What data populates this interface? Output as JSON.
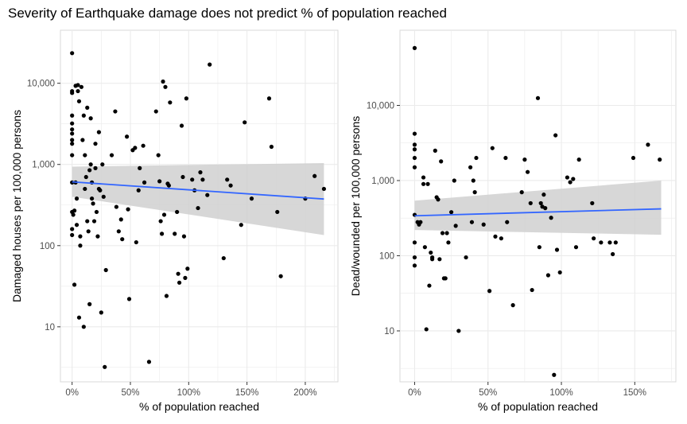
{
  "title": "Severity of Earthquake damage does not predict % of population reached",
  "colors": {
    "point": "#000000",
    "fit_line": "#3366FF",
    "confidence_band": "#d0d0d0",
    "grid": "#ebebeb",
    "panel_border": "#d9d9d9"
  },
  "chart_data": [
    {
      "type": "scatter",
      "name": "damaged-houses",
      "xlabel": "% of population reached",
      "ylabel": "Damaged houses per 100,000 persons",
      "y_scale": "log10",
      "xlim": [
        -0.1,
        2.28
      ],
      "ylim": [
        2.1,
        45000
      ],
      "x_ticks": [
        0,
        0.5,
        1,
        1.5,
        2
      ],
      "x_tick_labels": [
        "0%",
        "50%",
        "100%",
        "150%",
        "200%"
      ],
      "y_ticks": [
        10,
        100,
        1000,
        10000
      ],
      "y_tick_labels": [
        "10",
        "100",
        "1,000",
        "10,000"
      ],
      "smooth": {
        "method": "lm",
        "x": [
          0,
          2.16
        ],
        "y": [
          610,
          375
        ],
        "ci_low": [
          400,
          135
        ],
        "ci_high": [
          940,
          1040
        ]
      },
      "points": [
        [
          0.0,
          23500
        ],
        [
          0.0,
          8000
        ],
        [
          0.0,
          7600
        ],
        [
          0.0,
          4000
        ],
        [
          0.0,
          3200
        ],
        [
          0.0,
          2700
        ],
        [
          0.0,
          2400
        ],
        [
          0.0,
          2000
        ],
        [
          0.0,
          1800
        ],
        [
          0.0,
          1300
        ],
        [
          0.0,
          600
        ],
        [
          0.0,
          260
        ],
        [
          0.0,
          160
        ],
        [
          0.0,
          135
        ],
        [
          0.01,
          240
        ],
        [
          0.02,
          270
        ],
        [
          0.02,
          33
        ],
        [
          0.03,
          9300
        ],
        [
          0.03,
          600
        ],
        [
          0.04,
          380
        ],
        [
          0.04,
          180
        ],
        [
          0.05,
          9500
        ],
        [
          0.05,
          8000
        ],
        [
          0.06,
          6000
        ],
        [
          0.06,
          13
        ],
        [
          0.07,
          130
        ],
        [
          0.07,
          100
        ],
        [
          0.08,
          9000
        ],
        [
          0.09,
          2000
        ],
        [
          0.1,
          4000
        ],
        [
          0.1,
          10
        ],
        [
          0.11,
          1300
        ],
        [
          0.11,
          500
        ],
        [
          0.12,
          700
        ],
        [
          0.13,
          5000
        ],
        [
          0.13,
          200
        ],
        [
          0.14,
          150
        ],
        [
          0.15,
          850
        ],
        [
          0.15,
          19
        ],
        [
          0.16,
          3700
        ],
        [
          0.16,
          1000
        ],
        [
          0.17,
          600
        ],
        [
          0.17,
          380
        ],
        [
          0.18,
          330
        ],
        [
          0.19,
          200
        ],
        [
          0.2,
          1800
        ],
        [
          0.2,
          900
        ],
        [
          0.21,
          260
        ],
        [
          0.22,
          130
        ],
        [
          0.23,
          2500
        ],
        [
          0.23,
          500
        ],
        [
          0.24,
          480
        ],
        [
          0.25,
          15
        ],
        [
          0.26,
          1000
        ],
        [
          0.27,
          400
        ],
        [
          0.28,
          3.2
        ],
        [
          0.29,
          50
        ],
        [
          0.34,
          1300
        ],
        [
          0.37,
          4500
        ],
        [
          0.38,
          300
        ],
        [
          0.4,
          150
        ],
        [
          0.42,
          210
        ],
        [
          0.43,
          120
        ],
        [
          0.47,
          2200
        ],
        [
          0.48,
          280
        ],
        [
          0.49,
          22
        ],
        [
          0.52,
          1500
        ],
        [
          0.54,
          1600
        ],
        [
          0.55,
          110
        ],
        [
          0.57,
          480
        ],
        [
          0.58,
          900
        ],
        [
          0.61,
          1700
        ],
        [
          0.62,
          600
        ],
        [
          0.66,
          3.7
        ],
        [
          0.72,
          4500
        ],
        [
          0.74,
          1300
        ],
        [
          0.75,
          620
        ],
        [
          0.76,
          200
        ],
        [
          0.77,
          140
        ],
        [
          0.78,
          10500
        ],
        [
          0.79,
          240
        ],
        [
          0.8,
          9000
        ],
        [
          0.81,
          24
        ],
        [
          0.82,
          580
        ],
        [
          0.83,
          550
        ],
        [
          0.84,
          5800
        ],
        [
          0.88,
          140
        ],
        [
          0.9,
          260
        ],
        [
          0.91,
          45
        ],
        [
          0.92,
          35
        ],
        [
          0.94,
          3000
        ],
        [
          0.95,
          700
        ],
        [
          0.96,
          130
        ],
        [
          0.97,
          40
        ],
        [
          0.98,
          6500
        ],
        [
          0.99,
          52
        ],
        [
          1.03,
          650
        ],
        [
          1.05,
          480
        ],
        [
          1.08,
          290
        ],
        [
          1.1,
          800
        ],
        [
          1.12,
          650
        ],
        [
          1.16,
          420
        ],
        [
          1.18,
          17000
        ],
        [
          1.3,
          70
        ],
        [
          1.33,
          650
        ],
        [
          1.36,
          550
        ],
        [
          1.45,
          180
        ],
        [
          1.48,
          3300
        ],
        [
          1.54,
          380
        ],
        [
          1.69,
          6500
        ],
        [
          1.71,
          1650
        ],
        [
          1.76,
          260
        ],
        [
          1.79,
          42
        ],
        [
          2.0,
          380
        ],
        [
          2.08,
          720
        ],
        [
          2.16,
          500
        ]
      ]
    },
    {
      "type": "scatter",
      "name": "dead-wounded",
      "xlabel": "% of population reached",
      "ylabel": "Dead/wounded per 100,000 persons",
      "y_scale": "log10",
      "xlim": [
        -0.1,
        1.78
      ],
      "ylim": [
        2.1,
        100000
      ],
      "x_ticks": [
        0,
        0.5,
        1,
        1.5
      ],
      "x_tick_labels": [
        "0%",
        "50%",
        "100%",
        "150%"
      ],
      "y_ticks": [
        10,
        100,
        1000,
        10000
      ],
      "y_tick_labels": [
        "10",
        "100",
        "1,000",
        "10,000"
      ],
      "smooth": {
        "method": "lm",
        "x": [
          0,
          1.68
        ],
        "y": [
          340,
          420
        ],
        "ci_low": [
          220,
          190
        ],
        "ci_high": [
          540,
          1000
        ]
      },
      "points": [
        [
          0.0,
          58000
        ],
        [
          0.0,
          4200
        ],
        [
          0.0,
          3000
        ],
        [
          0.0,
          2600
        ],
        [
          0.0,
          2000
        ],
        [
          0.0,
          1500
        ],
        [
          0.0,
          350
        ],
        [
          0.0,
          150
        ],
        [
          0.0,
          95
        ],
        [
          0.0,
          74
        ],
        [
          0.02,
          280
        ],
        [
          0.03,
          260
        ],
        [
          0.04,
          280
        ],
        [
          0.06,
          1100
        ],
        [
          0.06,
          900
        ],
        [
          0.07,
          130
        ],
        [
          0.08,
          10.5
        ],
        [
          0.09,
          900
        ],
        [
          0.1,
          40
        ],
        [
          0.11,
          110
        ],
        [
          0.12,
          90
        ],
        [
          0.12,
          95
        ],
        [
          0.14,
          2500
        ],
        [
          0.15,
          600
        ],
        [
          0.16,
          560
        ],
        [
          0.17,
          90
        ],
        [
          0.18,
          1800
        ],
        [
          0.19,
          200
        ],
        [
          0.2,
          50
        ],
        [
          0.21,
          50
        ],
        [
          0.22,
          200
        ],
        [
          0.23,
          150
        ],
        [
          0.25,
          380
        ],
        [
          0.27,
          1000
        ],
        [
          0.28,
          250
        ],
        [
          0.3,
          10
        ],
        [
          0.35,
          95
        ],
        [
          0.38,
          1500
        ],
        [
          0.39,
          280
        ],
        [
          0.4,
          1000
        ],
        [
          0.41,
          700
        ],
        [
          0.42,
          2000
        ],
        [
          0.47,
          260
        ],
        [
          0.51,
          34
        ],
        [
          0.53,
          2700
        ],
        [
          0.55,
          180
        ],
        [
          0.59,
          170
        ],
        [
          0.62,
          2000
        ],
        [
          0.63,
          280
        ],
        [
          0.67,
          22
        ],
        [
          0.73,
          700
        ],
        [
          0.75,
          1900
        ],
        [
          0.77,
          1300
        ],
        [
          0.79,
          500
        ],
        [
          0.8,
          35
        ],
        [
          0.84,
          12500
        ],
        [
          0.85,
          130
        ],
        [
          0.86,
          500
        ],
        [
          0.87,
          450
        ],
        [
          0.88,
          650
        ],
        [
          0.89,
          430
        ],
        [
          0.91,
          55
        ],
        [
          0.93,
          320
        ],
        [
          0.95,
          2.6
        ],
        [
          0.96,
          4000
        ],
        [
          0.97,
          120
        ],
        [
          0.99,
          60
        ],
        [
          1.04,
          1100
        ],
        [
          1.06,
          950
        ],
        [
          1.08,
          1050
        ],
        [
          1.1,
          130
        ],
        [
          1.12,
          1900
        ],
        [
          1.21,
          500
        ],
        [
          1.22,
          170
        ],
        [
          1.27,
          150
        ],
        [
          1.33,
          150
        ],
        [
          1.35,
          105
        ],
        [
          1.37,
          150
        ],
        [
          1.49,
          2000
        ],
        [
          1.59,
          3000
        ],
        [
          1.67,
          1900
        ]
      ]
    }
  ]
}
